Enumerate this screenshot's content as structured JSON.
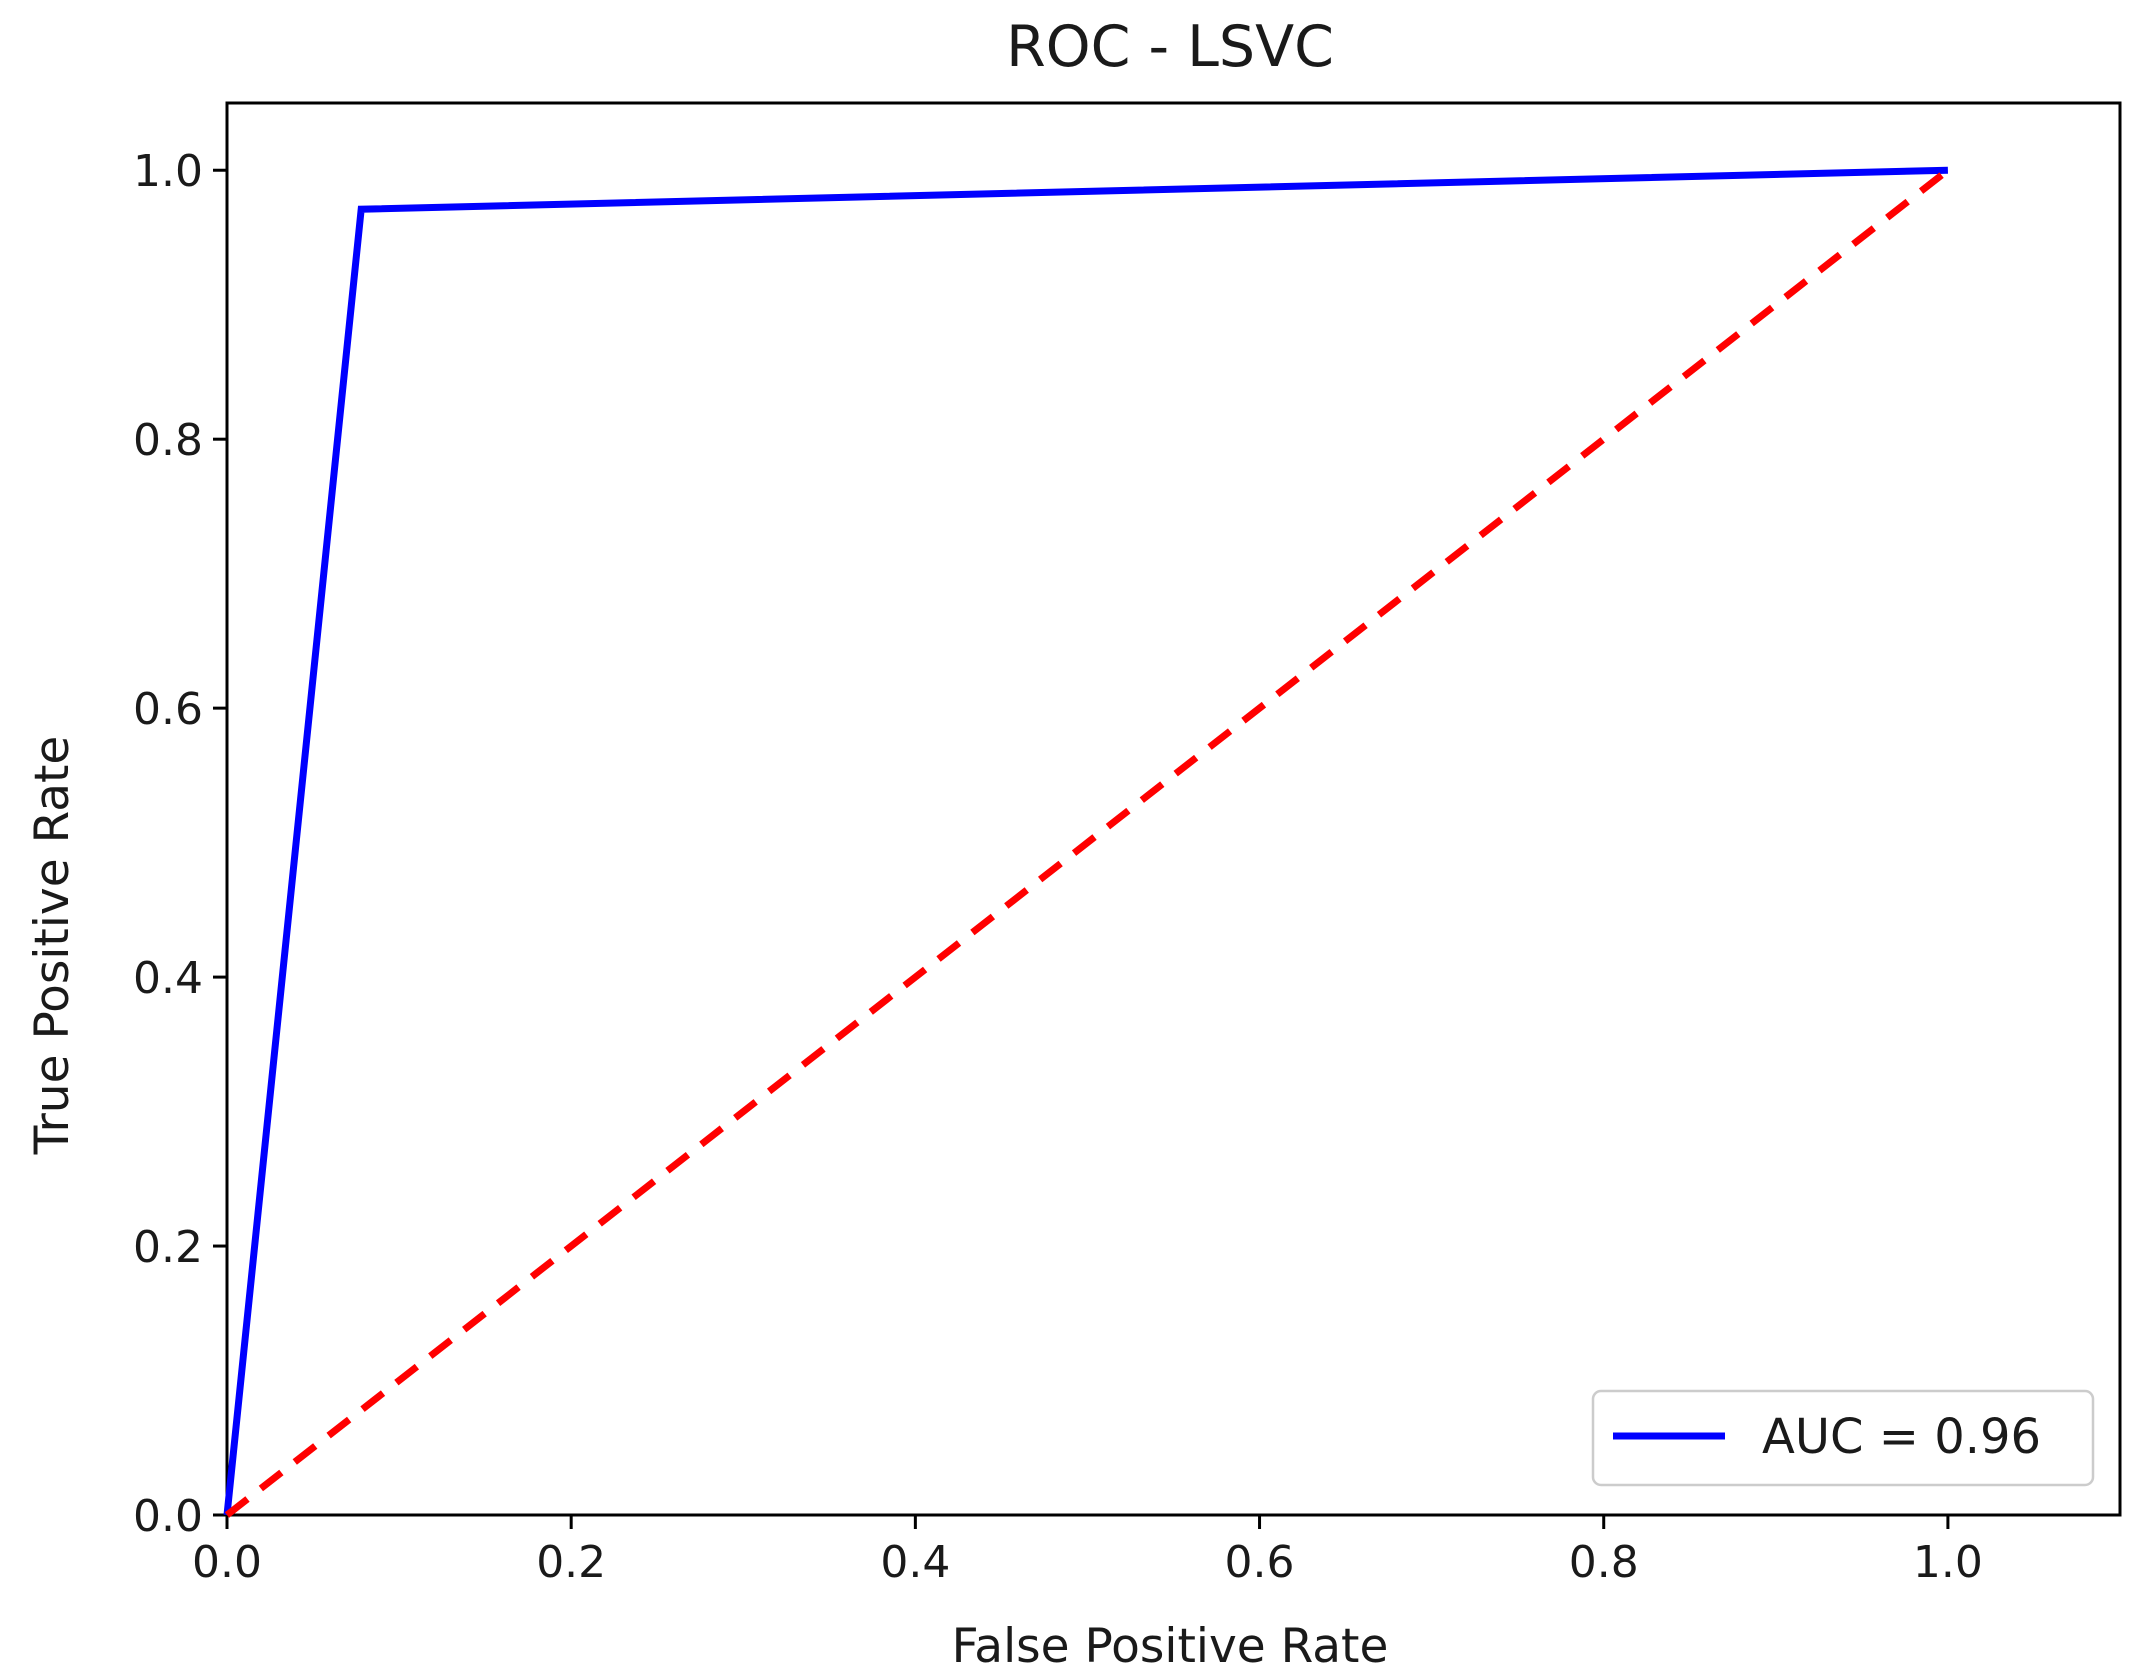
{
  "chart_data": {
    "type": "line",
    "title": "ROC - LSVC",
    "xlabel": "False Positive Rate",
    "ylabel": "True Positive Rate",
    "xlim": [
      0.0,
      1.1
    ],
    "ylim": [
      0.0,
      1.05
    ],
    "xticks": [
      "0.0",
      "0.2",
      "0.4",
      "0.6",
      "0.8",
      "1.0"
    ],
    "yticks": [
      "0.0",
      "0.2",
      "0.4",
      "0.6",
      "0.8",
      "1.0"
    ],
    "grid": false,
    "legend_position": "lower-right",
    "series": [
      {
        "name": "AUC = 0.96",
        "color": "#0000ff",
        "style": "solid",
        "x": [
          0.0,
          0.078,
          1.0
        ],
        "y": [
          0.0,
          0.971,
          1.0
        ]
      },
      {
        "color": "#ff0000",
        "style": "dashed",
        "x": [
          0.0,
          1.0
        ],
        "y": [
          0.0,
          1.0
        ]
      }
    ]
  }
}
